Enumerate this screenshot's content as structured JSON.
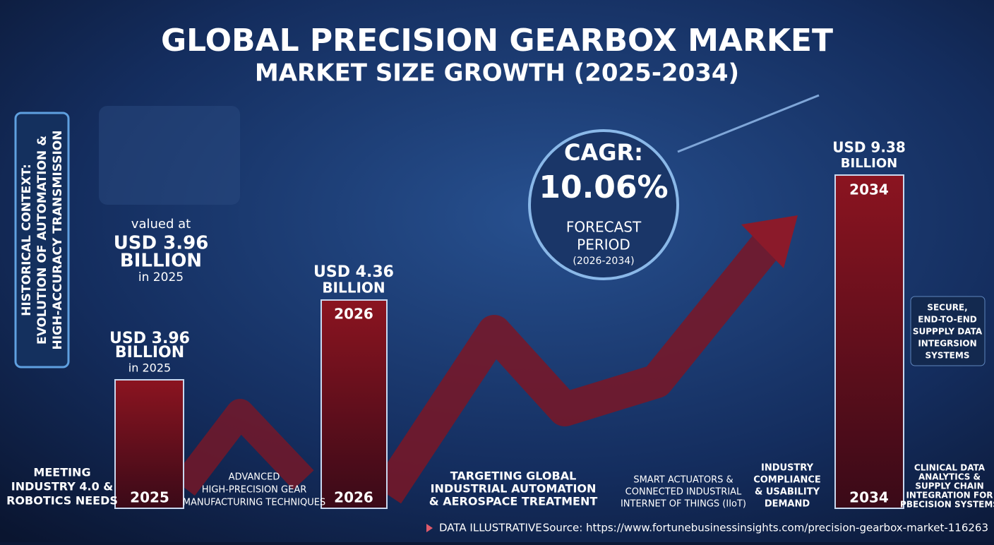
{
  "header": {
    "title": "GLOBAL PRECISION GEARBOX MARKET",
    "subtitle": "MARKET SIZE GROWTH (2025-2034)"
  },
  "sidebar": {
    "lines": [
      "HISTORICAL CONTEXT:",
      "EVOLUTION OF AUTOMATION &",
      "HIGH-ACCURACY TRANSMISSION"
    ]
  },
  "valued": {
    "prefix": "valued at",
    "value": "USD 3.96",
    "unit": "BILLION",
    "suffix": "in 2025"
  },
  "cagr": {
    "label": "CAGR:",
    "value": "10.06%",
    "period_lines": [
      "FORECAST",
      "PERIOD"
    ],
    "period": "(2026-2034)"
  },
  "bars": [
    {
      "value": "USD 3.96",
      "unit": "BILLION",
      "note": "in 2025",
      "year_bottom": "2025"
    },
    {
      "value": "USD 4.36",
      "unit": "BILLION",
      "year_top": "2026",
      "year_bottom": "2026"
    },
    {
      "value": "USD 9.38",
      "unit": "BILLION",
      "year_top": "2034",
      "year_bottom": "2034"
    }
  ],
  "captions": [
    {
      "lines": [
        "MEETING",
        "INDUSTRY 4.0 &",
        "ROBOTICS NEEDS"
      ]
    },
    {
      "lines": [
        "ADVANCED",
        "HIGH-PRECISION GEAR",
        "MANUFACTURING TECHNIQUES"
      ]
    },
    {
      "lines": [
        "TARGETING GLOBAL",
        "INDUSTRIAL AUTOMATION",
        "& AEROSPACE TREATMENT"
      ]
    },
    {
      "lines": [
        "SMART ACTUATORS &",
        "CONNECTED INDUSTRIAL",
        "INTERNET OF THINGS (IIoT)"
      ]
    },
    {
      "lines": [
        "INDUSTRY",
        "COMPLIANCE",
        "& USABILITY",
        "DEMAND"
      ]
    },
    {
      "lines": [
        "SECURE,",
        "END-TO-END",
        "SUPPPLY DATA",
        "INTEGRSION",
        "SYSTEMS"
      ]
    },
    {
      "lines": [
        "CLINICAL DATA",
        "ANALYTICS &",
        "SUPPLY CHAIN",
        "INTEGRATION FOR",
        "PBECISION SYSTEMS"
      ]
    }
  ],
  "footer": {
    "note": "DATA ILLUSTRATIVE",
    "source": "Source: https://www.fortunebusinessinsights.com/precision-gearbox-market-116263"
  }
}
